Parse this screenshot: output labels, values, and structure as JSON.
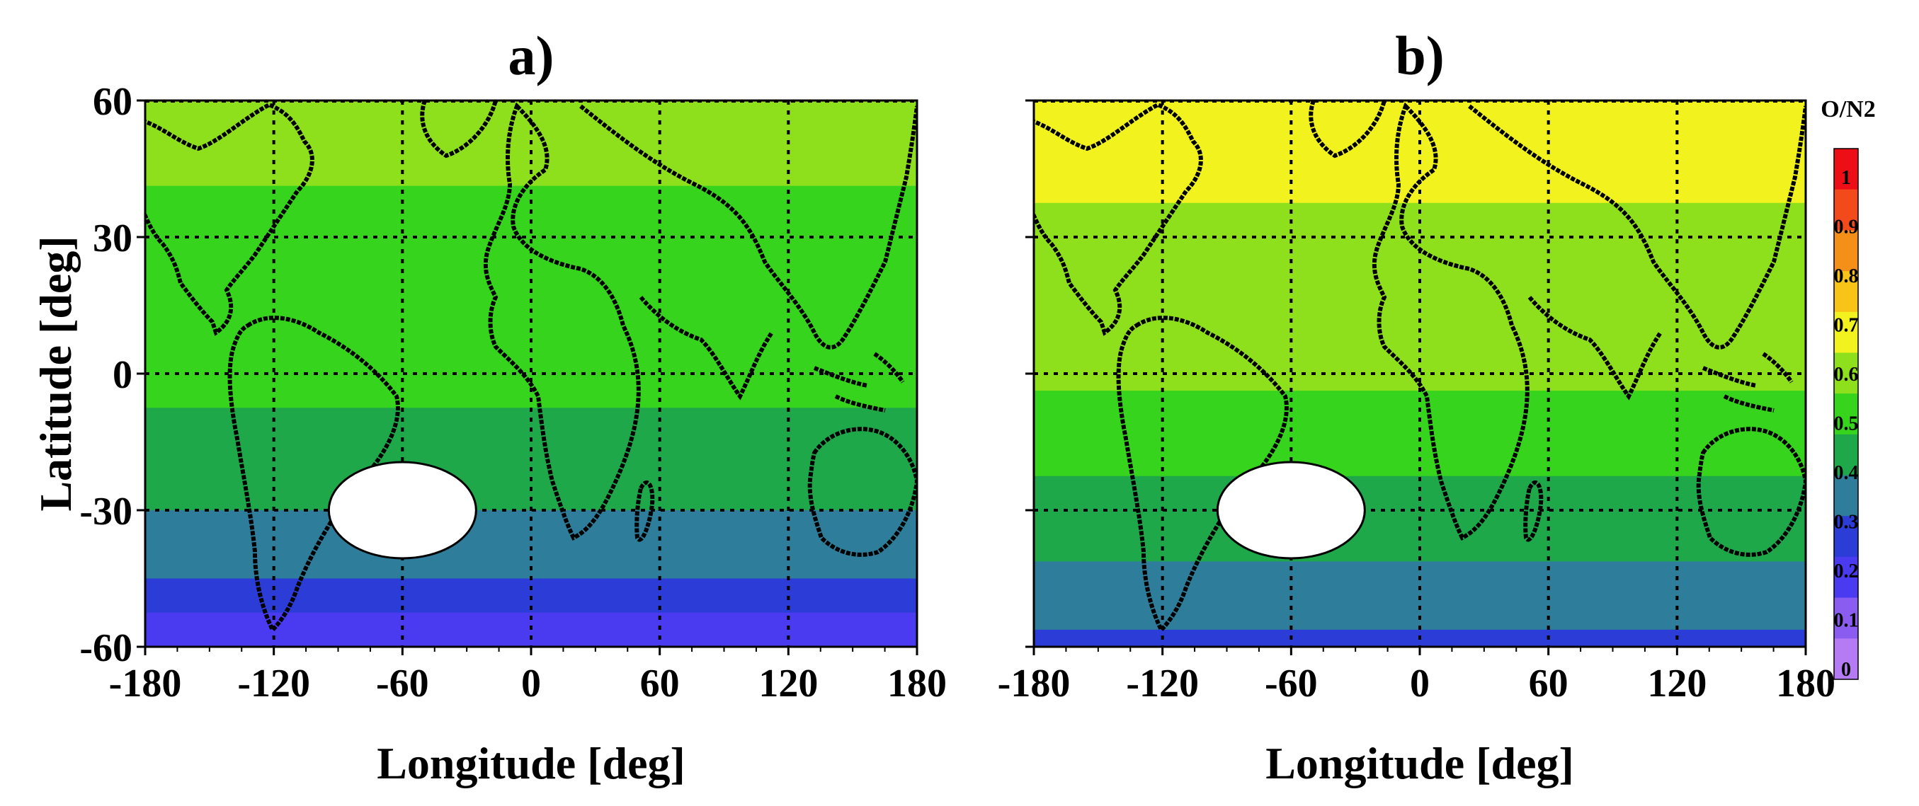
{
  "chart_data": [
    {
      "type": "heatmap",
      "title": "a)",
      "xlabel": "Longitude [deg]",
      "ylabel": "Latitude [deg]",
      "xlim": [
        -180,
        180
      ],
      "ylim": [
        -60,
        60
      ],
      "xticks": [
        -180,
        -120,
        -60,
        0,
        60,
        120,
        180
      ],
      "yticks": [
        -60,
        -30,
        0,
        30,
        60
      ],
      "grid": true,
      "masked_region": {
        "lon": -60,
        "lat": -30
      },
      "latitude_profile": [
        {
          "lat": 60,
          "value": 0.62
        },
        {
          "lat": 45,
          "value": 0.55
        },
        {
          "lat": 30,
          "value": 0.5
        },
        {
          "lat": 15,
          "value": 0.48
        },
        {
          "lat": 0,
          "value": 0.47
        },
        {
          "lat": -15,
          "value": 0.45
        },
        {
          "lat": -30,
          "value": 0.38
        },
        {
          "lat": -45,
          "value": 0.28
        },
        {
          "lat": -60,
          "value": 0.15
        }
      ]
    },
    {
      "type": "heatmap",
      "title": "b)",
      "xlabel": "Longitude [deg]",
      "ylabel": "",
      "xlim": [
        -180,
        180
      ],
      "ylim": [
        -60,
        60
      ],
      "xticks": [
        -180,
        -120,
        -60,
        0,
        60,
        120,
        180
      ],
      "yticks": [
        -60,
        -30,
        0,
        30,
        60
      ],
      "grid": true,
      "masked_region": {
        "lon": -60,
        "lat": -30
      },
      "latitude_profile": [
        {
          "lat": 60,
          "value": 0.66
        },
        {
          "lat": 45,
          "value": 0.66
        },
        {
          "lat": 30,
          "value": 0.6
        },
        {
          "lat": 15,
          "value": 0.58
        },
        {
          "lat": 0,
          "value": 0.55
        },
        {
          "lat": -15,
          "value": 0.5
        },
        {
          "lat": -30,
          "value": 0.42
        },
        {
          "lat": -45,
          "value": 0.36
        },
        {
          "lat": -60,
          "value": 0.28
        }
      ]
    }
  ],
  "colorbar": {
    "title": "O/N2",
    "ticks": [
      0,
      0.1,
      0.2,
      0.3,
      0.4,
      0.5,
      0.6,
      0.7,
      0.8,
      0.9,
      1
    ],
    "colors": [
      "#b57bf5",
      "#8b5cf0",
      "#4a3bf0",
      "#2c3cd6",
      "#2e7d9a",
      "#1fa84a",
      "#36d41c",
      "#8ee01c",
      "#f2f21e",
      "#f8c418",
      "#f49018",
      "#f24a1a",
      "#ee0e16"
    ]
  }
}
